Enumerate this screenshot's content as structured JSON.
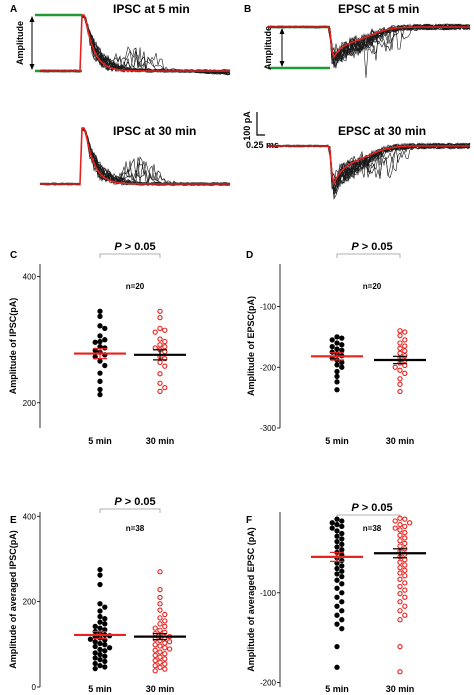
{
  "colors": {
    "trace": "#1a1a1a",
    "average_trace": "#e8221e",
    "green": "#1e9a36",
    "five_min_dots": "#000000",
    "thirty_min_dots": "#e8221e"
  },
  "panels": {
    "A": {
      "letter": "A",
      "top_title": "IPSC at 5 min",
      "bottom_title": "IPSC at 30 min",
      "amplitude_label": "Amplitude"
    },
    "B": {
      "letter": "B",
      "top_title": "EPSC at 5 min",
      "bottom_title": "EPSC at 30 min",
      "amplitude_label": "Amplitude",
      "scale_y": "100 pA",
      "scale_x": "0.25 ms"
    }
  },
  "chart_data": [
    {
      "panel": "C",
      "type": "scatter",
      "ylabel": "Amplitude of IPSC(pA)",
      "yticks": [
        200,
        400
      ],
      "ylim": [
        160,
        420
      ],
      "categories": [
        "5 min",
        "30 min"
      ],
      "pvalue": {
        "italic": "P",
        "rest": " > 0.05"
      },
      "n_label": "n=20",
      "series": [
        {
          "category": "5 min",
          "mean": 278,
          "sem": 8,
          "values": [
            345,
            337,
            322,
            318,
            306,
            300,
            297,
            296,
            289,
            287,
            283,
            280,
            276,
            273,
            266,
            259,
            247,
            234,
            221,
            213
          ]
        },
        {
          "category": "30 min",
          "mean": 276,
          "sem": 8,
          "values": [
            345,
            335,
            318,
            315,
            312,
            301,
            297,
            292,
            289,
            287,
            284,
            281,
            273,
            270,
            264,
            258,
            246,
            231,
            224,
            218
          ]
        }
      ]
    },
    {
      "panel": "D",
      "type": "scatter",
      "ylabel": "Amplitude of EPSC(pA)",
      "yticks": [
        -100,
        -200,
        -300
      ],
      "ylim": [
        -300,
        -30
      ],
      "categories": [
        "5 min",
        "30 min"
      ],
      "pvalue": {
        "italic": "P",
        "rest": " > 0.05"
      },
      "n_label": "n=20",
      "series": [
        {
          "category": "5 min",
          "mean": -182,
          "sem": 6,
          "values": [
            -150,
            -152,
            -155,
            -160,
            -163,
            -166,
            -170,
            -172,
            -175,
            -178,
            -181,
            -185,
            -188,
            -192,
            -196,
            -200,
            -207,
            -215,
            -224,
            -237
          ]
        },
        {
          "category": "30 min",
          "mean": -188,
          "sem": 6,
          "values": [
            -140,
            -142,
            -148,
            -155,
            -160,
            -165,
            -169,
            -173,
            -177,
            -181,
            -185,
            -189,
            -193,
            -197,
            -200,
            -205,
            -210,
            -219,
            -228,
            -240
          ]
        }
      ]
    },
    {
      "panel": "E",
      "type": "scatter",
      "ylabel": "Amplitude of averaged IPSC(pA)",
      "yticks": [
        0,
        200,
        400
      ],
      "ylim": [
        0,
        410
      ],
      "categories": [
        "5 min",
        "30 min"
      ],
      "pvalue": {
        "italic": "P",
        "rest": " > 0.05"
      },
      "n_label": "n=38",
      "series": [
        {
          "category": "5 min",
          "mean": 122,
          "sem": 8,
          "values": [
            275,
            262,
            240,
            195,
            187,
            178,
            165,
            160,
            152,
            148,
            142,
            138,
            134,
            130,
            126,
            122,
            120,
            118,
            115,
            112,
            110,
            106,
            102,
            99,
            95,
            92,
            88,
            85,
            80,
            76,
            72,
            68,
            64,
            60,
            55,
            50,
            47,
            43
          ]
        },
        {
          "category": "30 min",
          "mean": 118,
          "sem": 7,
          "values": [
            270,
            228,
            210,
            195,
            180,
            170,
            162,
            155,
            148,
            142,
            138,
            133,
            128,
            125,
            122,
            118,
            115,
            112,
            109,
            106,
            103,
            99,
            96,
            92,
            89,
            86,
            82,
            78,
            74,
            70,
            66,
            62,
            58,
            54,
            50,
            46,
            42,
            38
          ]
        }
      ]
    },
    {
      "panel": "F",
      "type": "scatter",
      "ylabel": "Amplitude of averaged EPSC (pA)",
      "yticks": [
        -100,
        -200
      ],
      "ylim": [
        -205,
        -10
      ],
      "categories": [
        "5 min",
        "30 min"
      ],
      "pvalue": {
        "italic": "P",
        "rest": " > 0.05"
      },
      "n_label": "n=38",
      "series": [
        {
          "category": "5 min",
          "mean": -60,
          "sem": 5,
          "values": [
            -18,
            -20,
            -22,
            -24,
            -26,
            -28,
            -31,
            -34,
            -37,
            -40,
            -43,
            -46,
            -49,
            -52,
            -55,
            -58,
            -61,
            -64,
            -67,
            -70,
            -73,
            -76,
            -79,
            -82,
            -86,
            -90,
            -95,
            -100,
            -105,
            -110,
            -115,
            -120,
            -125,
            -130,
            -135,
            -140,
            -160,
            -183
          ]
        },
        {
          "category": "30 min",
          "mean": -56,
          "sem": 5,
          "values": [
            -17,
            -18,
            -20,
            -22,
            -24,
            -26,
            -28,
            -30,
            -33,
            -36,
            -39,
            -42,
            -45,
            -48,
            -51,
            -54,
            -57,
            -60,
            -63,
            -66,
            -69,
            -72,
            -75,
            -78,
            -81,
            -85,
            -89,
            -93,
            -97,
            -101,
            -105,
            -110,
            -115,
            -120,
            -125,
            -130,
            -160,
            -188
          ]
        }
      ]
    }
  ]
}
